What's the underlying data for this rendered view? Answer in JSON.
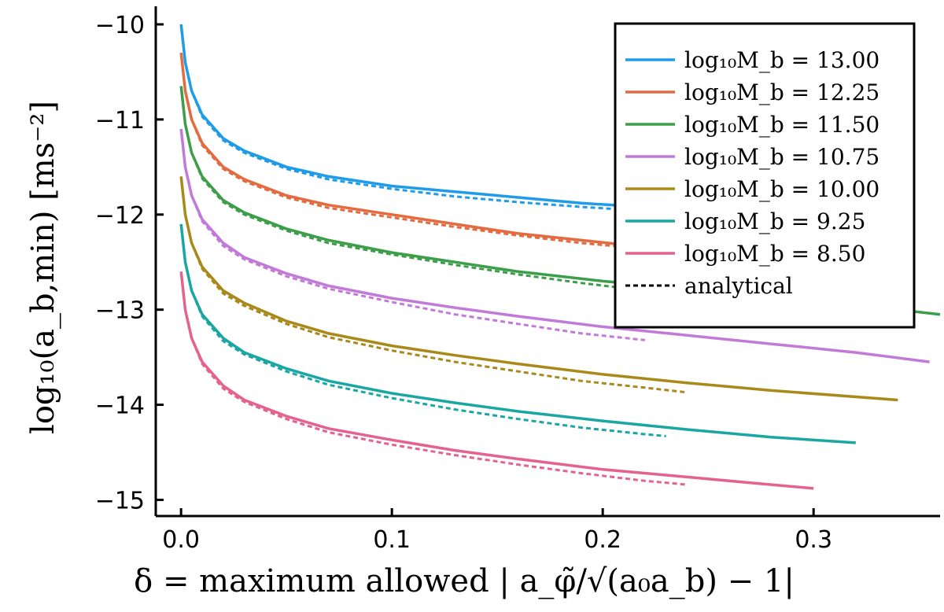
{
  "chart_data": {
    "type": "line",
    "xlabel": "δ = maximum allowed | a_φ̃/√(a₀a_b) − 1|",
    "ylabel": "log₁₀(a_b,min) [ms⁻²]",
    "xlim": [
      -0.012,
      0.36
    ],
    "ylim": [
      -15.17,
      -9.81
    ],
    "x_ticks": [
      0.0,
      0.1,
      0.2,
      0.3
    ],
    "x_tick_labels": [
      "0.0",
      "0.1",
      "0.2",
      "0.3"
    ],
    "y_ticks": [
      -10,
      -11,
      -12,
      -13,
      -14,
      -15
    ],
    "y_tick_labels": [
      "−10",
      "−11",
      "−12",
      "−13",
      "−14",
      "−15"
    ],
    "grid": false,
    "legend_position": "top-right",
    "legend_analytical_label": "analytical",
    "series": [
      {
        "name": "log₁₀M_b = 13.00",
        "color": "#1f9be8",
        "logM": "13.00",
        "x": [
          0.0,
          0.002,
          0.005,
          0.01,
          0.02,
          0.03,
          0.05,
          0.07,
          0.1,
          0.13,
          0.16,
          0.19,
          0.22,
          0.24
        ],
        "y": [
          -10.0,
          -10.4,
          -10.7,
          -10.95,
          -11.2,
          -11.33,
          -11.5,
          -11.6,
          -11.7,
          -11.76,
          -11.82,
          -11.88,
          -11.92,
          -11.97
        ],
        "analytical_x": [
          0.0,
          0.002,
          0.005,
          0.01,
          0.02,
          0.03,
          0.05,
          0.07,
          0.1,
          0.13,
          0.16,
          0.19,
          0.22,
          0.23
        ],
        "analytical_y": [
          -10.0,
          -10.4,
          -10.7,
          -10.97,
          -11.22,
          -11.35,
          -11.52,
          -11.63,
          -11.73,
          -11.81,
          -11.87,
          -11.92,
          -11.96,
          -11.97
        ]
      },
      {
        "name": "log₁₀M_b = 12.25",
        "color": "#e26b3f",
        "logM": "12.25",
        "x": [
          0.0,
          0.002,
          0.005,
          0.01,
          0.02,
          0.03,
          0.05,
          0.07,
          0.1,
          0.13,
          0.16,
          0.19,
          0.22,
          0.25,
          0.28,
          0.3
        ],
        "y": [
          -10.3,
          -10.7,
          -11.0,
          -11.25,
          -11.5,
          -11.63,
          -11.8,
          -11.9,
          -12.0,
          -12.1,
          -12.2,
          -12.27,
          -12.34,
          -12.4,
          -12.46,
          -12.5
        ],
        "analytical_x": [
          0.0,
          0.002,
          0.005,
          0.01,
          0.02,
          0.03,
          0.05,
          0.07,
          0.1,
          0.13,
          0.16,
          0.19,
          0.22,
          0.23
        ],
        "analytical_y": [
          -10.3,
          -10.7,
          -11.0,
          -11.27,
          -11.52,
          -11.65,
          -11.82,
          -11.93,
          -12.03,
          -12.13,
          -12.22,
          -12.3,
          -12.36,
          -12.38
        ]
      },
      {
        "name": "log₁₀M_b = 11.50",
        "color": "#3d9e4a",
        "logM": "11.50",
        "x": [
          0.0,
          0.002,
          0.005,
          0.01,
          0.02,
          0.03,
          0.05,
          0.07,
          0.1,
          0.13,
          0.16,
          0.2,
          0.24,
          0.28,
          0.32,
          0.36
        ],
        "y": [
          -10.65,
          -11.05,
          -11.35,
          -11.6,
          -11.85,
          -11.98,
          -12.15,
          -12.27,
          -12.4,
          -12.5,
          -12.6,
          -12.7,
          -12.78,
          -12.86,
          -12.95,
          -13.05
        ],
        "analytical_x": [
          0.0,
          0.002,
          0.005,
          0.01,
          0.02,
          0.03,
          0.05,
          0.07,
          0.1,
          0.13,
          0.16,
          0.19,
          0.22,
          0.23
        ],
        "analytical_y": [
          -10.65,
          -11.05,
          -11.35,
          -11.62,
          -11.87,
          -12.0,
          -12.17,
          -12.3,
          -12.42,
          -12.53,
          -12.63,
          -12.72,
          -12.8,
          -12.83
        ]
      },
      {
        "name": "log₁₀M_b = 10.75",
        "color": "#c27ad8",
        "logM": "10.75",
        "x": [
          0.0,
          0.002,
          0.005,
          0.01,
          0.02,
          0.03,
          0.05,
          0.07,
          0.1,
          0.13,
          0.16,
          0.2,
          0.24,
          0.28,
          0.32,
          0.355
        ],
        "y": [
          -11.1,
          -11.5,
          -11.8,
          -12.05,
          -12.3,
          -12.45,
          -12.62,
          -12.75,
          -12.88,
          -12.98,
          -13.07,
          -13.18,
          -13.27,
          -13.36,
          -13.45,
          -13.55
        ],
        "analytical_x": [
          0.0,
          0.002,
          0.005,
          0.01,
          0.02,
          0.03,
          0.05,
          0.07,
          0.1,
          0.13,
          0.16,
          0.19,
          0.22
        ],
        "analytical_y": [
          -11.1,
          -11.5,
          -11.8,
          -12.07,
          -12.33,
          -12.47,
          -12.65,
          -12.78,
          -12.92,
          -13.05,
          -13.15,
          -13.25,
          -13.32
        ]
      },
      {
        "name": "log₁₀M_b = 10.00",
        "color": "#a8891a",
        "logM": "10.00",
        "x": [
          0.0,
          0.002,
          0.005,
          0.01,
          0.02,
          0.03,
          0.05,
          0.07,
          0.1,
          0.13,
          0.16,
          0.2,
          0.24,
          0.28,
          0.34
        ],
        "y": [
          -11.6,
          -12.0,
          -12.3,
          -12.55,
          -12.8,
          -12.93,
          -13.12,
          -13.25,
          -13.38,
          -13.48,
          -13.57,
          -13.68,
          -13.77,
          -13.85,
          -13.95
        ],
        "analytical_x": [
          0.0,
          0.002,
          0.005,
          0.01,
          0.02,
          0.03,
          0.05,
          0.07,
          0.1,
          0.13,
          0.16,
          0.19,
          0.22,
          0.24
        ],
        "analytical_y": [
          -11.6,
          -12.0,
          -12.3,
          -12.57,
          -12.83,
          -12.96,
          -13.15,
          -13.29,
          -13.43,
          -13.55,
          -13.65,
          -13.75,
          -13.82,
          -13.87
        ]
      },
      {
        "name": "log₁₀M_b = 9.25",
        "color": "#1aa7a3",
        "logM": "9.25",
        "x": [
          0.0,
          0.002,
          0.005,
          0.01,
          0.02,
          0.03,
          0.05,
          0.07,
          0.1,
          0.13,
          0.16,
          0.2,
          0.24,
          0.28,
          0.32
        ],
        "y": [
          -12.1,
          -12.5,
          -12.8,
          -13.05,
          -13.3,
          -13.45,
          -13.62,
          -13.75,
          -13.88,
          -13.98,
          -14.07,
          -14.17,
          -14.26,
          -14.34,
          -14.4
        ],
        "analytical_x": [
          0.0,
          0.002,
          0.005,
          0.01,
          0.02,
          0.03,
          0.05,
          0.07,
          0.1,
          0.13,
          0.16,
          0.19,
          0.22,
          0.23
        ],
        "analytical_y": [
          -12.1,
          -12.5,
          -12.8,
          -13.07,
          -13.33,
          -13.47,
          -13.65,
          -13.79,
          -13.93,
          -14.05,
          -14.15,
          -14.24,
          -14.31,
          -14.33
        ]
      },
      {
        "name": "log₁₀M_b = 8.50",
        "color": "#e3628f",
        "logM": "8.50",
        "x": [
          0.0,
          0.002,
          0.005,
          0.01,
          0.02,
          0.03,
          0.05,
          0.07,
          0.1,
          0.13,
          0.16,
          0.2,
          0.24,
          0.27,
          0.3
        ],
        "y": [
          -12.6,
          -13.0,
          -13.3,
          -13.55,
          -13.8,
          -13.95,
          -14.12,
          -14.25,
          -14.37,
          -14.48,
          -14.57,
          -14.68,
          -14.76,
          -14.82,
          -14.88
        ],
        "analytical_x": [
          0.0,
          0.002,
          0.005,
          0.01,
          0.02,
          0.03,
          0.05,
          0.07,
          0.1,
          0.13,
          0.16,
          0.19,
          0.22,
          0.24
        ],
        "analytical_y": [
          -12.6,
          -13.0,
          -13.3,
          -13.57,
          -13.83,
          -13.97,
          -14.15,
          -14.29,
          -14.42,
          -14.53,
          -14.63,
          -14.72,
          -14.8,
          -14.84
        ]
      }
    ]
  }
}
